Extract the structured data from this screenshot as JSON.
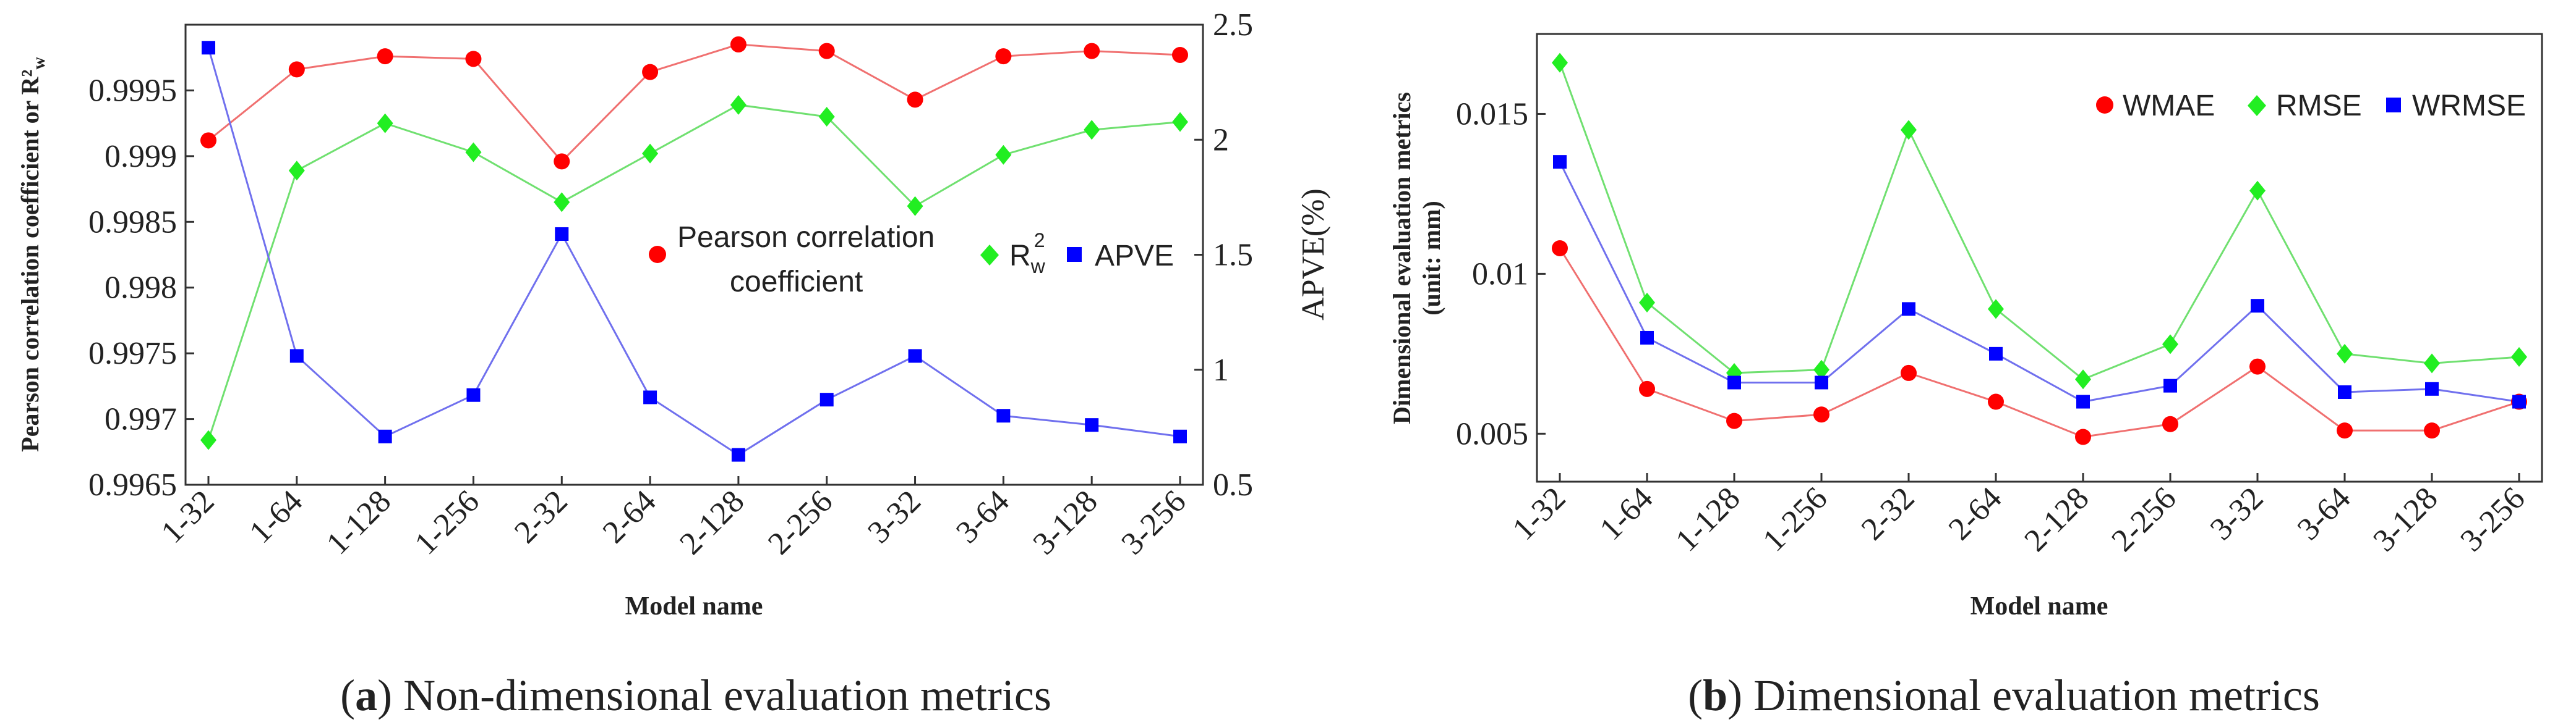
{
  "chart_data": [
    {
      "id": "a",
      "type": "line",
      "caption_letter": "a",
      "caption_text": " Non-dimensional evaluation metrics",
      "categories": [
        "1-32",
        "1-64",
        "1-128",
        "1-256",
        "2-32",
        "2-64",
        "2-128",
        "2-256",
        "3-32",
        "3-64",
        "3-128",
        "3-256"
      ],
      "xlabel": "Model name",
      "ylabel": "Pearson correlation coefficient or R²",
      "ylabel_sub": "w",
      "ylim": [
        0.9965,
        1.0
      ],
      "yticks": [
        "0.9965",
        "0.997",
        "0.9975",
        "0.998",
        "0.9985",
        "0.999",
        "0.9995"
      ],
      "y2label": "APVE(%)",
      "y2lim": [
        0.5,
        2.5
      ],
      "y2ticks": [
        "0.5",
        "1",
        "1.5",
        "2",
        "2.5"
      ],
      "series": [
        {
          "name": "Pearson correlation coefficient",
          "name_line1": "Pearson correlation",
          "name_line2": "coefficient",
          "axis": "left",
          "marker": "circle",
          "color": "#ff0000",
          "line_color": "#f07070",
          "values": [
            0.99912,
            0.99966,
            0.99976,
            0.99974,
            0.99896,
            0.99964,
            0.99985,
            0.9998,
            0.99943,
            0.99976,
            0.9998,
            0.99977
          ]
        },
        {
          "name": "R²w",
          "name_main": "R",
          "name_sup": "2",
          "name_sub": "w",
          "axis": "left",
          "marker": "diamond",
          "color": "#22ee22",
          "line_color": "#70e070",
          "values": [
            0.99684,
            0.99889,
            0.99925,
            0.99903,
            0.99865,
            0.99902,
            0.99939,
            0.9993,
            0.99862,
            0.99901,
            0.9992,
            0.99926
          ]
        },
        {
          "name": "APVE",
          "axis": "right",
          "marker": "square",
          "color": "#0000ff",
          "line_color": "#7070ee",
          "values": [
            2.4,
            1.06,
            0.71,
            0.89,
            1.59,
            0.88,
            0.63,
            0.87,
            1.06,
            0.8,
            0.76,
            0.71
          ]
        }
      ]
    },
    {
      "id": "b",
      "type": "line",
      "caption_letter": "b",
      "caption_text": " Dimensional evaluation metrics",
      "categories": [
        "1-32",
        "1-64",
        "1-128",
        "1-256",
        "2-32",
        "2-64",
        "2-128",
        "2-256",
        "3-32",
        "3-64",
        "3-128",
        "3-256"
      ],
      "xlabel": "Model name",
      "ylabel_line1": "Dimensional evaluation metrics",
      "ylabel_line2": "(unit: mm)",
      "ylim": [
        0.0035,
        0.0175
      ],
      "yticks": [
        "0.005",
        "0.01",
        "0.015"
      ],
      "series": [
        {
          "name": "WMAE",
          "marker": "circle",
          "color": "#ff0000",
          "line_color": "#f07070",
          "values": [
            0.0108,
            0.0064,
            0.0054,
            0.0056,
            0.0069,
            0.006,
            0.0049,
            0.0053,
            0.0071,
            0.0051,
            0.0051,
            0.006
          ]
        },
        {
          "name": "RMSE",
          "marker": "diamond",
          "color": "#22ee22",
          "line_color": "#70e070",
          "values": [
            0.0166,
            0.0091,
            0.0069,
            0.007,
            0.0145,
            0.0089,
            0.0067,
            0.0078,
            0.0126,
            0.0075,
            0.0072,
            0.0074
          ]
        },
        {
          "name": "WRMSE",
          "marker": "square",
          "color": "#0000ff",
          "line_color": "#7070ee",
          "values": [
            0.0135,
            0.008,
            0.0066,
            0.0066,
            0.0089,
            0.0075,
            0.006,
            0.0065,
            0.009,
            0.0063,
            0.0064,
            0.006
          ]
        }
      ]
    }
  ]
}
